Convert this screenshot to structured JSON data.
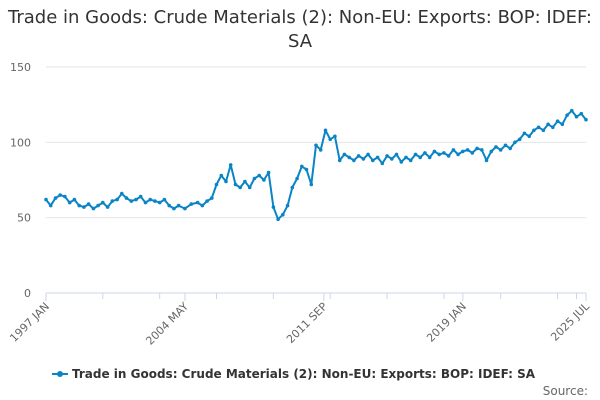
{
  "title": "Trade in Goods: Crude Materials (2): Non-EU: Exports: BOP: IDEF: SA",
  "source_label": "Source:",
  "colors": {
    "series": "#0b84c6",
    "grid": "#e6e6e6",
    "axis": "#ccd6eb",
    "text": "#333333",
    "muted": "#666666"
  },
  "chart_data": {
    "type": "line",
    "title": "Trade in Goods: Crude Materials (2): Non-EU: Exports: BOP: IDEF: SA",
    "xlabel": "",
    "ylabel": "",
    "x_range": [
      "1997-01",
      "2025-07"
    ],
    "ylim": [
      0,
      150
    ],
    "yticks": [
      0,
      50,
      100,
      150
    ],
    "xtick_labels": [
      "1997 JAN",
      "2004 MAY",
      "2011 SEP",
      "2019 JAN",
      "2025 JUL"
    ],
    "xtick_dates": [
      "1997-01",
      "2004-05",
      "2011-09",
      "2019-01",
      "2025-07"
    ],
    "grid": true,
    "legend_position": "bottom",
    "series": [
      {
        "name": "Trade in Goods: Crude Materials (2): Non-EU: Exports: BOP: IDEF: SA",
        "values_by_month": [
          [
            "1997-01",
            62
          ],
          [
            "1997-04",
            58
          ],
          [
            "1997-07",
            63
          ],
          [
            "1997-10",
            65
          ],
          [
            "1998-01",
            64
          ],
          [
            "1998-04",
            60
          ],
          [
            "1998-07",
            62
          ],
          [
            "1998-10",
            58
          ],
          [
            "1999-01",
            57
          ],
          [
            "1999-04",
            59
          ],
          [
            "1999-07",
            56
          ],
          [
            "1999-10",
            58
          ],
          [
            "2000-01",
            60
          ],
          [
            "2000-04",
            57
          ],
          [
            "2000-07",
            61
          ],
          [
            "2000-10",
            62
          ],
          [
            "2001-01",
            66
          ],
          [
            "2001-04",
            63
          ],
          [
            "2001-07",
            61
          ],
          [
            "2001-10",
            62
          ],
          [
            "2002-01",
            64
          ],
          [
            "2002-04",
            60
          ],
          [
            "2002-07",
            62
          ],
          [
            "2002-10",
            61
          ],
          [
            "2003-01",
            60
          ],
          [
            "2003-04",
            62
          ],
          [
            "2003-07",
            58
          ],
          [
            "2003-10",
            56
          ],
          [
            "2004-01",
            58
          ],
          [
            "2004-05",
            56
          ],
          [
            "2004-09",
            59
          ],
          [
            "2005-01",
            60
          ],
          [
            "2005-04",
            58
          ],
          [
            "2005-07",
            61
          ],
          [
            "2005-10",
            63
          ],
          [
            "2006-01",
            72
          ],
          [
            "2006-04",
            78
          ],
          [
            "2006-07",
            74
          ],
          [
            "2006-10",
            85
          ],
          [
            "2007-01",
            72
          ],
          [
            "2007-04",
            70
          ],
          [
            "2007-07",
            74
          ],
          [
            "2007-10",
            70
          ],
          [
            "2008-01",
            76
          ],
          [
            "2008-04",
            78
          ],
          [
            "2008-07",
            75
          ],
          [
            "2008-10",
            80
          ],
          [
            "2009-01",
            57
          ],
          [
            "2009-04",
            49
          ],
          [
            "2009-07",
            52
          ],
          [
            "2009-10",
            58
          ],
          [
            "2010-01",
            70
          ],
          [
            "2010-04",
            76
          ],
          [
            "2010-07",
            84
          ],
          [
            "2010-10",
            82
          ],
          [
            "2011-01",
            72
          ],
          [
            "2011-04",
            98
          ],
          [
            "2011-07",
            95
          ],
          [
            "2011-10",
            108
          ],
          [
            "2012-01",
            102
          ],
          [
            "2012-04",
            104
          ],
          [
            "2012-07",
            88
          ],
          [
            "2012-10",
            92
          ],
          [
            "2013-01",
            90
          ],
          [
            "2013-04",
            88
          ],
          [
            "2013-07",
            91
          ],
          [
            "2013-10",
            89
          ],
          [
            "2014-01",
            92
          ],
          [
            "2014-04",
            88
          ],
          [
            "2014-07",
            90
          ],
          [
            "2014-10",
            86
          ],
          [
            "2015-01",
            91
          ],
          [
            "2015-04",
            89
          ],
          [
            "2015-07",
            92
          ],
          [
            "2015-10",
            87
          ],
          [
            "2016-01",
            90
          ],
          [
            "2016-04",
            88
          ],
          [
            "2016-07",
            92
          ],
          [
            "2016-10",
            90
          ],
          [
            "2017-01",
            93
          ],
          [
            "2017-04",
            90
          ],
          [
            "2017-07",
            94
          ],
          [
            "2017-10",
            92
          ],
          [
            "2018-01",
            93
          ],
          [
            "2018-04",
            91
          ],
          [
            "2018-07",
            95
          ],
          [
            "2018-10",
            92
          ],
          [
            "2019-01",
            94
          ],
          [
            "2019-04",
            95
          ],
          [
            "2019-07",
            93
          ],
          [
            "2019-10",
            96
          ],
          [
            "2020-01",
            95
          ],
          [
            "2020-04",
            88
          ],
          [
            "2020-07",
            94
          ],
          [
            "2020-10",
            97
          ],
          [
            "2021-01",
            95
          ],
          [
            "2021-04",
            98
          ],
          [
            "2021-07",
            96
          ],
          [
            "2021-10",
            100
          ],
          [
            "2022-01",
            102
          ],
          [
            "2022-04",
            106
          ],
          [
            "2022-07",
            104
          ],
          [
            "2022-10",
            108
          ],
          [
            "2023-01",
            110
          ],
          [
            "2023-04",
            108
          ],
          [
            "2023-07",
            112
          ],
          [
            "2023-10",
            110
          ],
          [
            "2024-01",
            114
          ],
          [
            "2024-04",
            112
          ],
          [
            "2024-07",
            118
          ],
          [
            "2024-10",
            121
          ],
          [
            "2025-01",
            117
          ],
          [
            "2025-04",
            119
          ],
          [
            "2025-07",
            115
          ]
        ]
      }
    ]
  }
}
